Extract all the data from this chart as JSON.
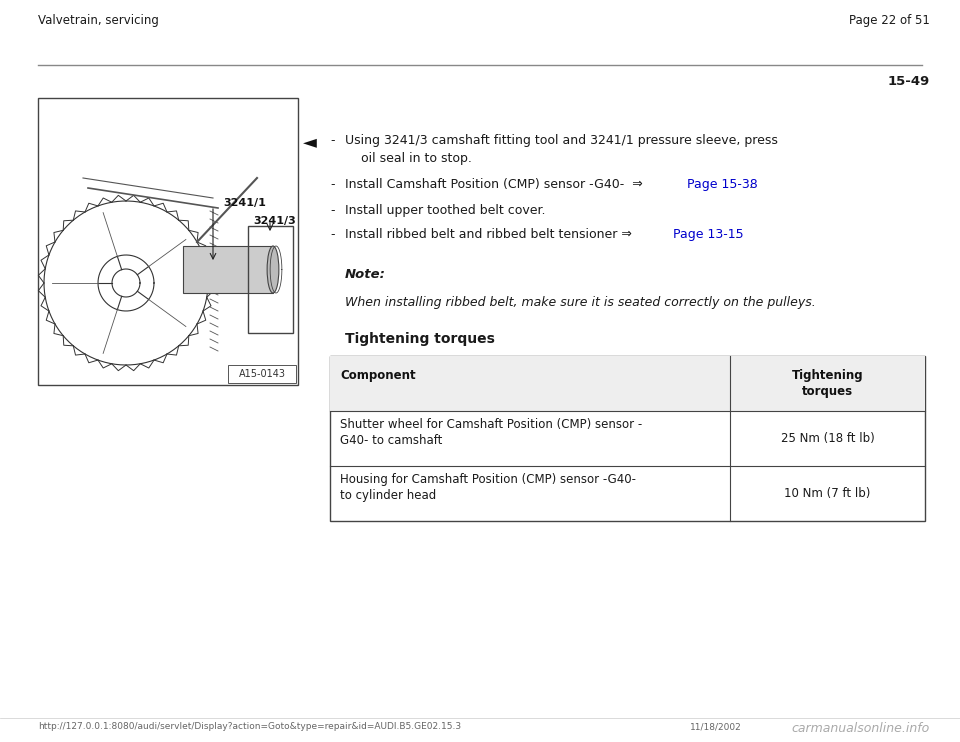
{
  "bg_color": "#ffffff",
  "header_left": "Valvetrain, servicing",
  "header_right": "Page 22 of 51",
  "page_number": "15-49",
  "note_label": "Note:",
  "note_text": "When installing ribbed belt, make sure it is seated correctly on the pulleys.",
  "tightening_header": "Tightening torques",
  "table_headers": [
    "Component",
    "Tightening\ntorques"
  ],
  "table_rows": [
    [
      "Shutter wheel for Camshaft Position (CMP) sensor -\nG40- to camshaft",
      "25 Nm (18 ft lb)"
    ],
    [
      "Housing for Camshaft Position (CMP) sensor -G40-\nto cylinder head",
      "10 Nm (7 ft lb)"
    ]
  ],
  "footer_url": "http://127.0.0.1:8080/audi/servlet/Display?action=Goto&type=repair&id=AUDI.B5.GE02.15.3",
  "footer_date": "11/18/2002",
  "footer_watermark": "carmanualsonline.info",
  "image_label": "A15-0143",
  "tool_label_1": "3241/1",
  "tool_label_2": "3241/3",
  "link1_text": "Page 15-38",
  "link2_text": "Page 13-15",
  "bullet1a": "Using 3241/3 camshaft fitting tool and 3241/1 pressure sleeve, press",
  "bullet1b": "oil seal in to stop.",
  "bullet2_pre": "Install Camshaft Position (CMP) sensor -G40-  ⇒  ",
  "bullet2_post": " .",
  "bullet3": "Install upper toothed belt cover.",
  "bullet4_pre": "Install ribbed belt and ribbed belt tensioner ⇒  ",
  "bullet4_post": " .",
  "text_color": "#1a1a1a",
  "link_color": "#0000cc",
  "line_color": "#888888",
  "table_border_color": "#444444",
  "header_font_size": 8.5,
  "body_font_size": 9.0,
  "note_font_size": 9.5,
  "tighten_font_size": 10.0,
  "table_font_size": 8.5,
  "footer_font_size": 6.5
}
